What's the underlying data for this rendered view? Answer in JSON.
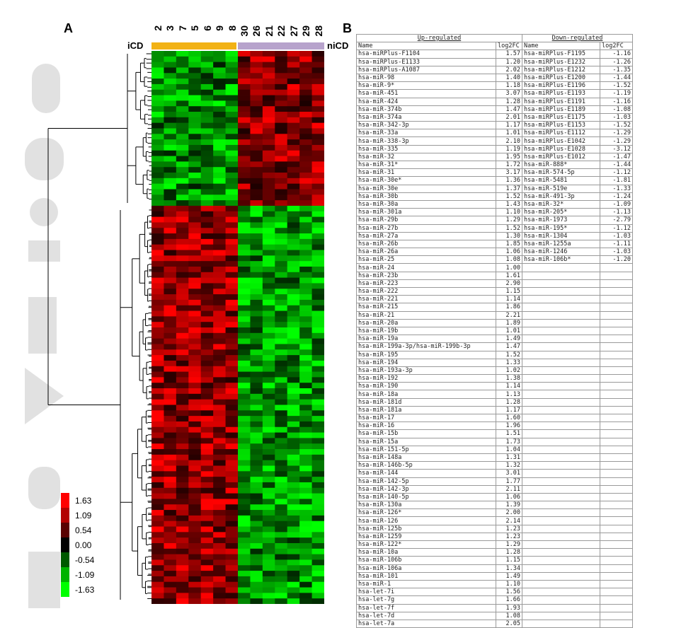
{
  "panel_a": {
    "label": "A",
    "group_left": "iCD",
    "group_right": "niCD",
    "samples": [
      "2",
      "3",
      "7",
      "5",
      "6",
      "9",
      "8",
      "30",
      "26",
      "21",
      "22",
      "27",
      "29",
      "28"
    ],
    "colors": {
      "icd": "#f2b215",
      "nicd": "#b7a3cc",
      "up": "#ff0000",
      "down": "#00ff00",
      "zero": "#000000"
    },
    "legend_values": [
      "1.63",
      "1.09",
      "0.54",
      "0.00",
      "-0.54",
      "-1.09",
      "-1.63"
    ],
    "legend_colors": [
      "#ff0000",
      "#b30000",
      "#590000",
      "#000000",
      "#005900",
      "#00b300",
      "#00ff00"
    ]
  },
  "panel_b": {
    "label": "B",
    "up_header": "Up-regulated",
    "down_header": "Down-regulated",
    "col_name": "Name",
    "col_fc": "log2FC",
    "up": [
      [
        "hsa-miRPlus-F1104",
        "1.57"
      ],
      [
        "hsa-miRPlus-E1133",
        "1.20"
      ],
      [
        "hsa-miRPlus-A1087",
        "2.02"
      ],
      [
        "hsa-miR-98",
        "1.40"
      ],
      [
        "hsa-miR-9*",
        "1.18"
      ],
      [
        "hsa-miR-451",
        "3.07"
      ],
      [
        "hsa-miR-424",
        "1.28"
      ],
      [
        "hsa-miR-374b",
        "1.47"
      ],
      [
        "hsa-miR-374a",
        "2.01"
      ],
      [
        "hsa-miR-342-3p",
        "1.17"
      ],
      [
        "hsa-miR-33a",
        "1.01"
      ],
      [
        "hsa-miR-338-3p",
        "2.10"
      ],
      [
        "hsa-miR-335",
        "1.19"
      ],
      [
        "hsa-miR-32",
        "1.95"
      ],
      [
        "hsa-miR-31*",
        "1.72"
      ],
      [
        "hsa-miR-31",
        "3.17"
      ],
      [
        "hsa-miR-30e*",
        "1.36"
      ],
      [
        "hsa-miR-30e",
        "1.37"
      ],
      [
        "hsa-miR-30b",
        "1.52"
      ],
      [
        "hsa-miR-30a",
        "1.43"
      ],
      [
        "hsa-miR-301a",
        "1.10"
      ],
      [
        "hsa-miR-29b",
        "1.29"
      ],
      [
        "hsa-miR-27b",
        "1.52"
      ],
      [
        "hsa-miR-27a",
        "1.30"
      ],
      [
        "hsa-miR-26b",
        "1.85"
      ],
      [
        "hsa-miR-26a",
        "1.06"
      ],
      [
        "hsa-miR-25",
        "1.08"
      ],
      [
        "hsa-miR-24",
        "1.00"
      ],
      [
        "hsa-miR-23b",
        "1.61"
      ],
      [
        "hsa-miR-223",
        "2.90"
      ],
      [
        "hsa-miR-222",
        "1.15"
      ],
      [
        "hsa-miR-221",
        "1.14"
      ],
      [
        "hsa-miR-215",
        "1.86"
      ],
      [
        "hsa-miR-21",
        "2.21"
      ],
      [
        "hsa-miR-20a",
        "1.89"
      ],
      [
        "hsa-miR-19b",
        "1.01"
      ],
      [
        "hsa-miR-19a",
        "1.49"
      ],
      [
        "hsa-miR-199a-3p/hsa-miR-199b-3p",
        "1.47"
      ],
      [
        "hsa-miR-195",
        "1.52"
      ],
      [
        "hsa-miR-194",
        "1.33"
      ],
      [
        "hsa-miR-193a-3p",
        "1.02"
      ],
      [
        "hsa-miR-192",
        "1.38"
      ],
      [
        "hsa-miR-190",
        "1.14"
      ],
      [
        "hsa-miR-18a",
        "1.13"
      ],
      [
        "hsa-miR-181d",
        "1.28"
      ],
      [
        "hsa-miR-181a",
        "1.17"
      ],
      [
        "hsa-miR-17",
        "1.60"
      ],
      [
        "hsa-miR-16",
        "1.96"
      ],
      [
        "hsa-miR-15b",
        "1.51"
      ],
      [
        "hsa-miR-15a",
        "1.73"
      ],
      [
        "hsa-miR-151-5p",
        "1.04"
      ],
      [
        "hsa-miR-148a",
        "1.31"
      ],
      [
        "hsa-miR-146b-5p",
        "1.32"
      ],
      [
        "hsa-miR-144",
        "3.01"
      ],
      [
        "hsa-miR-142-5p",
        "1.77"
      ],
      [
        "hsa-miR-142-3p",
        "2.11"
      ],
      [
        "hsa-miR-140-5p",
        "1.06"
      ],
      [
        "hsa-miR-130a",
        "1.39"
      ],
      [
        "hsa-miR-126*",
        "2.00"
      ],
      [
        "hsa-miR-126",
        "2.14"
      ],
      [
        "hsa-miR-125b",
        "1.23"
      ],
      [
        "hsa-miR-1259",
        "1.23"
      ],
      [
        "hsa-miR-122*",
        "1.29"
      ],
      [
        "hsa-miR-10a",
        "1.28"
      ],
      [
        "hsa-miR-106b",
        "1.15"
      ],
      [
        "hsa-miR-106a",
        "1.34"
      ],
      [
        "hsa-miR-101",
        "1.49"
      ],
      [
        "hsa-miR-1",
        "1.10"
      ],
      [
        "hsa-let-7i",
        "1.56"
      ],
      [
        "hsa-let-7g",
        "1.66"
      ],
      [
        "hsa-let-7f",
        "1.93"
      ],
      [
        "hsa-let-7d",
        "1.08"
      ],
      [
        "hsa-let-7a",
        "2.05"
      ]
    ],
    "down": [
      [
        "hsa-miRPlus-F1195",
        "-1.16"
      ],
      [
        "hsa-miRPlus-E1232",
        "-1.26"
      ],
      [
        "hsa-miRPlus-E1212",
        "-1.35"
      ],
      [
        "hsa-miRPlus-E1200",
        "-1.44"
      ],
      [
        "hsa-miRPlus-E1196",
        "-1.52"
      ],
      [
        "hsa-miRPlus-E1193",
        "-1.19"
      ],
      [
        "hsa-miRPlus-E1191",
        "-1.16"
      ],
      [
        "hsa-miRPlus-E1189",
        "-1.08"
      ],
      [
        "hsa-miRPlus-E1175",
        "-1.03"
      ],
      [
        "hsa-miRPlus-E1153",
        "-1.52"
      ],
      [
        "hsa-miRPlus-E1112",
        "-1.29"
      ],
      [
        "hsa-miRPlus-E1042",
        "-1.29"
      ],
      [
        "hsa-miRPlus-E1028",
        "-3.12"
      ],
      [
        "hsa-miRPlus-E1012",
        "-1.47"
      ],
      [
        "hsa-miR-888*",
        "-1.44"
      ],
      [
        "hsa-miR-574-5p",
        "-1.12"
      ],
      [
        "hsa-miR-5481",
        "-1.81"
      ],
      [
        "hsa-miR-519e",
        "-1.33"
      ],
      [
        "hsa-miR-491-3p",
        "-1.24"
      ],
      [
        "hsa-miR-32*",
        "-1.09"
      ],
      [
        "hsa-miR-205*",
        "-1.13"
      ],
      [
        "hsa-miR-1973",
        "-2.79"
      ],
      [
        "hsa-miR-195*",
        "-1.12"
      ],
      [
        "hsa-miR-1304",
        "-1.03"
      ],
      [
        "hsa-miR-1255a",
        "-1.11"
      ],
      [
        "hsa-miR-1246",
        "-1.03"
      ],
      [
        "hsa-miR-106b*",
        "-1.20"
      ]
    ]
  }
}
